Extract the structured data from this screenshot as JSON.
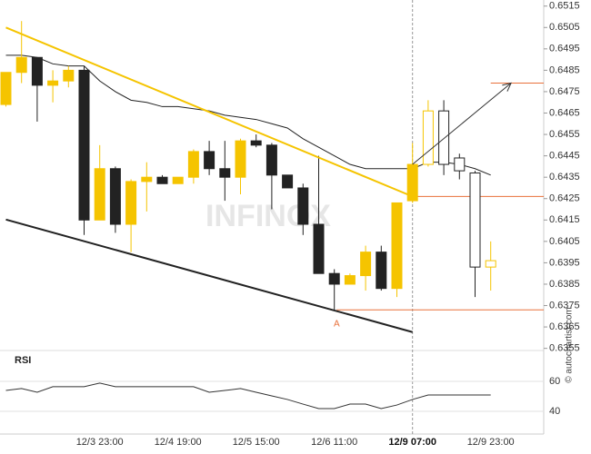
{
  "chart_data": [
    {
      "type": "candlestick",
      "categories": [
        null,
        null,
        null,
        null,
        null,
        null,
        "12/3 23:00",
        null,
        null,
        null,
        null,
        "12/4 19:00",
        null,
        null,
        null,
        null,
        "12/5 15:00",
        null,
        null,
        null,
        null,
        "12/6 11:00",
        null,
        null,
        null,
        null,
        "12/9 07:00",
        null,
        null,
        null,
        null,
        "12/9 23:00"
      ],
      "open": [
        0.6469,
        0.6484,
        0.6491,
        0.6478,
        0.648,
        0.6485,
        0.6415,
        0.6439,
        0.6413,
        0.6433,
        0.6435,
        0.6432,
        0.6435,
        0.6447,
        0.6439,
        0.6435,
        0.6452,
        0.645,
        0.6436,
        0.643,
        0.6413,
        0.639,
        0.6385,
        0.6389,
        0.64,
        0.6383,
        0.6424,
        0.6441,
        0.6466,
        0.6444,
        0.6437,
        0.6393
      ],
      "high": [
        0.6484,
        0.6508,
        0.6491,
        0.6485,
        0.6487,
        0.6487,
        0.645,
        0.644,
        0.6434,
        0.6442,
        0.6436,
        0.6435,
        0.6448,
        0.6452,
        0.6452,
        0.6453,
        0.6455,
        0.6451,
        0.6436,
        0.6432,
        0.6445,
        0.6392,
        0.639,
        0.6403,
        0.6403,
        0.6423,
        0.6451,
        0.6471,
        0.6471,
        0.6446,
        0.6438,
        0.6405
      ],
      "low": [
        0.6468,
        0.6479,
        0.6461,
        0.647,
        0.6477,
        0.6408,
        0.6415,
        0.6409,
        0.64,
        0.6419,
        0.6432,
        0.6432,
        0.6432,
        0.6436,
        0.6424,
        0.6427,
        0.6449,
        0.642,
        0.643,
        0.6408,
        0.639,
        0.6373,
        0.6385,
        0.6382,
        0.6382,
        0.6379,
        0.6423,
        0.644,
        0.6436,
        0.6434,
        0.6379,
        0.6382
      ],
      "close": [
        0.6484,
        0.6491,
        0.6478,
        0.648,
        0.6485,
        0.6415,
        0.6439,
        0.6413,
        0.6433,
        0.6435,
        0.6432,
        0.6435,
        0.6447,
        0.6439,
        0.6435,
        0.6452,
        0.645,
        0.6436,
        0.643,
        0.6413,
        0.639,
        0.6385,
        0.6389,
        0.64,
        0.6383,
        0.6423,
        0.6441,
        0.6466,
        0.6441,
        0.6438,
        0.6393,
        0.6396
      ],
      "body_colors": [
        "#f5c400",
        "#f5c400",
        "#222222",
        "#f5c400",
        "#f5c400",
        "#222222",
        "#f5c400",
        "#222222",
        "#f5c400",
        "#f5c400",
        "#222222",
        "#f5c400",
        "#f5c400",
        "#222222",
        "#222222",
        "#f5c400",
        "#222222",
        "#222222",
        "#222222",
        "#222222",
        "#222222",
        "#222222",
        "#f5c400",
        "#f5c400",
        "#222222",
        "#f5c400",
        "#f5c400",
        "#ffffff",
        "#ffffff",
        "#ffffff",
        "#ffffff",
        "#ffffff"
      ],
      "outline_colors": [
        "#f5c400",
        "#f5c400",
        "#222222",
        "#f5c400",
        "#f5c400",
        "#222222",
        "#f5c400",
        "#222222",
        "#f5c400",
        "#f5c400",
        "#222222",
        "#f5c400",
        "#f5c400",
        "#222222",
        "#222222",
        "#f5c400",
        "#222222",
        "#222222",
        "#222222",
        "#222222",
        "#222222",
        "#222222",
        "#f5c400",
        "#f5c400",
        "#222222",
        "#f5c400",
        "#f5c400",
        "#f5c400",
        "#222222",
        "#222222",
        "#222222",
        "#f5c400"
      ],
      "moving_average": {
        "color": "#222222",
        "values": [
          0.6492,
          0.6492,
          0.6491,
          0.6488,
          0.6487,
          0.6487,
          0.648,
          0.6475,
          0.6471,
          0.647,
          0.6468,
          0.6468,
          0.6467,
          0.6466,
          0.6464,
          0.6463,
          0.6462,
          0.646,
          0.6458,
          0.6453,
          0.6449,
          0.6445,
          0.6441,
          0.6439,
          0.6439,
          0.6439,
          0.6439,
          0.6442,
          0.6442,
          0.6441,
          0.6439,
          0.6436
        ]
      },
      "lines": [
        {
          "color": "#f5c400",
          "x": [
            0,
            26
          ],
          "y": [
            0.6505,
            0.6426
          ]
        },
        {
          "color": "#222222",
          "x": [
            0,
            26
          ],
          "y": [
            0.64152,
            0.63626
          ]
        },
        {
          "color": "#333333",
          "x": [
            26,
            32.3
          ],
          "y": [
            0.6441,
            0.6479
          ],
          "arrow": true
        }
      ],
      "levels": [
        {
          "value": 0.6479,
          "x_from": 31,
          "color": "#e8703a"
        },
        {
          "value": 0.6426,
          "x_from": 26,
          "color": "#e8703a"
        },
        {
          "value": 0.6373,
          "x_from": 21.15,
          "color": "#e8703a"
        }
      ],
      "annotation": {
        "text": "A",
        "x": 21.15,
        "y": 0.6368,
        "color": "#e8703a"
      },
      "event_index": 26,
      "watermark": "INFINOX",
      "credit": "© autochartist.com",
      "ylim": [
        0.6354,
        0.6517
      ],
      "yticks": [
        0.6515,
        0.6505,
        0.6495,
        0.6485,
        0.6475,
        0.6465,
        0.6455,
        0.6445,
        0.6435,
        0.6425,
        0.6415,
        0.6405,
        0.6395,
        0.6385,
        0.6375,
        0.6365,
        0.6355
      ]
    },
    {
      "type": "line",
      "title": "RSI",
      "series": [
        {
          "name": "RSI",
          "color": "#333333",
          "values": [
            53.9,
            55.2,
            52.7,
            56.4,
            56.4,
            56.4,
            58.8,
            56.4,
            56.4,
            56.4,
            56.4,
            56.4,
            56.4,
            52.7,
            53.9,
            55.2,
            52.7,
            50.3,
            47.9,
            44.8,
            41.8,
            41.8,
            44.8,
            44.8,
            41.8,
            44.2,
            47.9,
            50.9,
            50.9,
            50.9,
            50.9,
            50.9
          ]
        }
      ],
      "ylim": [
        25,
        79
      ],
      "yticks": [
        60,
        40
      ],
      "grid": true
    }
  ]
}
